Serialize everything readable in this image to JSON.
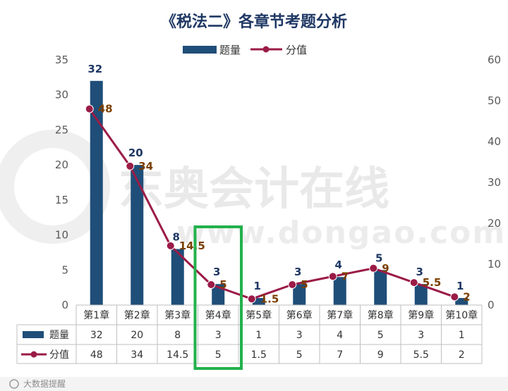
{
  "chart_data": {
    "type": "bar+line",
    "title": "《税法二》各章节考题分析",
    "categories": [
      "第1章",
      "第2章",
      "第3章",
      "第4章",
      "第5章",
      "第6章",
      "第7章",
      "第8章",
      "第9章",
      "第10章"
    ],
    "series": [
      {
        "name": "题量",
        "type": "bar",
        "axis": "left",
        "values": [
          32,
          20,
          8,
          3,
          1,
          3,
          4,
          5,
          3,
          1
        ],
        "labels": [
          "32",
          "20",
          "8",
          "3",
          "1",
          "3",
          "4",
          "5",
          "3",
          "1"
        ],
        "color": "#1f4e79"
      },
      {
        "name": "分值",
        "type": "line",
        "axis": "right",
        "values": [
          48,
          34,
          14.5,
          5,
          1.5,
          5,
          7,
          9,
          5.5,
          2
        ],
        "labels": [
          "48",
          "34",
          "14.5",
          "5",
          "1.5",
          "5",
          "7",
          "9",
          "5.5",
          "2"
        ],
        "color": "#9b1b47"
      }
    ],
    "y_left": {
      "min": 0,
      "max": 35,
      "ticks": [
        "0",
        "5",
        "10",
        "15",
        "20",
        "25",
        "30",
        "35"
      ]
    },
    "y_right": {
      "min": 0,
      "max": 60,
      "ticks": [
        "0",
        "10",
        "20",
        "30",
        "40",
        "50",
        "60"
      ]
    },
    "legend_position": "top-center",
    "highlight_category": "第4章",
    "highlight_color": "#22b14c"
  },
  "watermark": {
    "line1": "东奥会计在线",
    "line2": "www.dongao.com"
  },
  "footer": {
    "text": "大数据提醒"
  }
}
